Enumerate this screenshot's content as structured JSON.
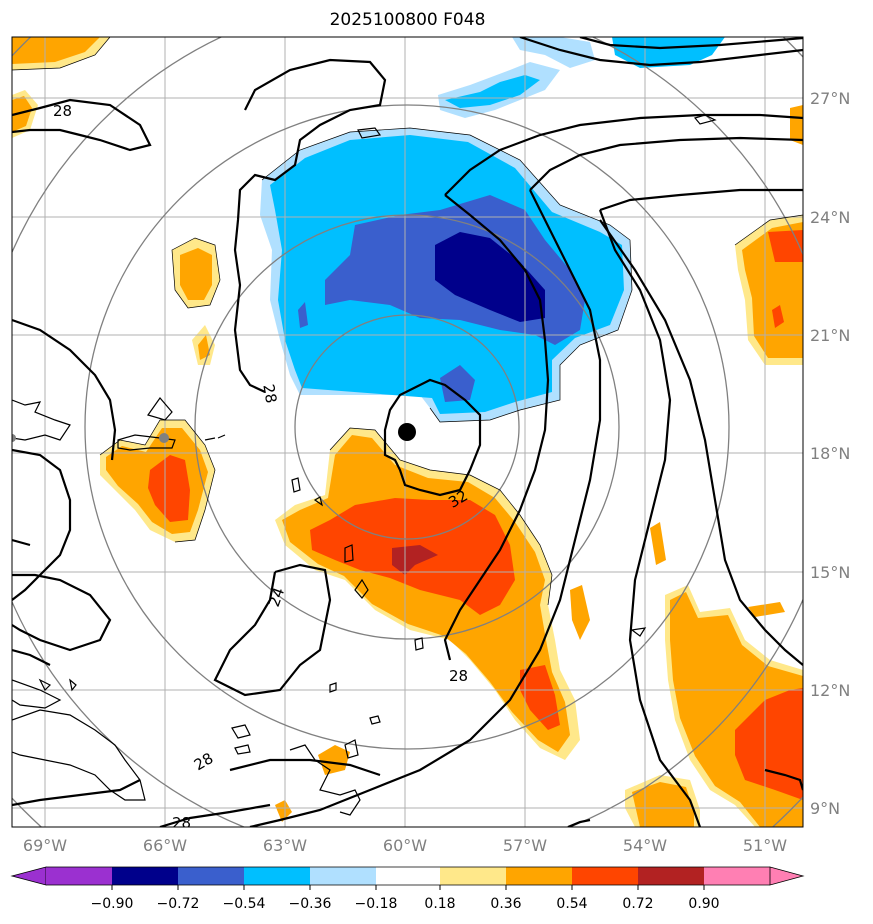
{
  "title": "2025100800 F048",
  "map": {
    "lon_ticks": [
      "69°W",
      "66°W",
      "63°W",
      "60°W",
      "57°W",
      "54°W",
      "51°W"
    ],
    "lat_ticks": [
      "27°N",
      "24°N",
      "21°N",
      "18°N",
      "15°N",
      "12°N",
      "9°N"
    ],
    "contour_labels": [
      "28",
      "28",
      "24",
      "32",
      "28",
      "28",
      "28"
    ],
    "storm_center_marker": "filled-black-circle",
    "range_rings": 5
  },
  "colorbar": {
    "ticks": [
      "−0.90",
      "−0.72",
      "−0.54",
      "−0.36",
      "−0.18",
      "0.18",
      "0.36",
      "0.54",
      "0.72",
      "0.90"
    ],
    "colors": [
      "#9b30d0",
      "#00008b",
      "#3a5fcd",
      "#00bfff",
      "#b0e0ff",
      "#ffffff",
      "#ffe88a",
      "#ffa500",
      "#ff4500",
      "#b22222",
      "#ff7fb3"
    ]
  }
}
